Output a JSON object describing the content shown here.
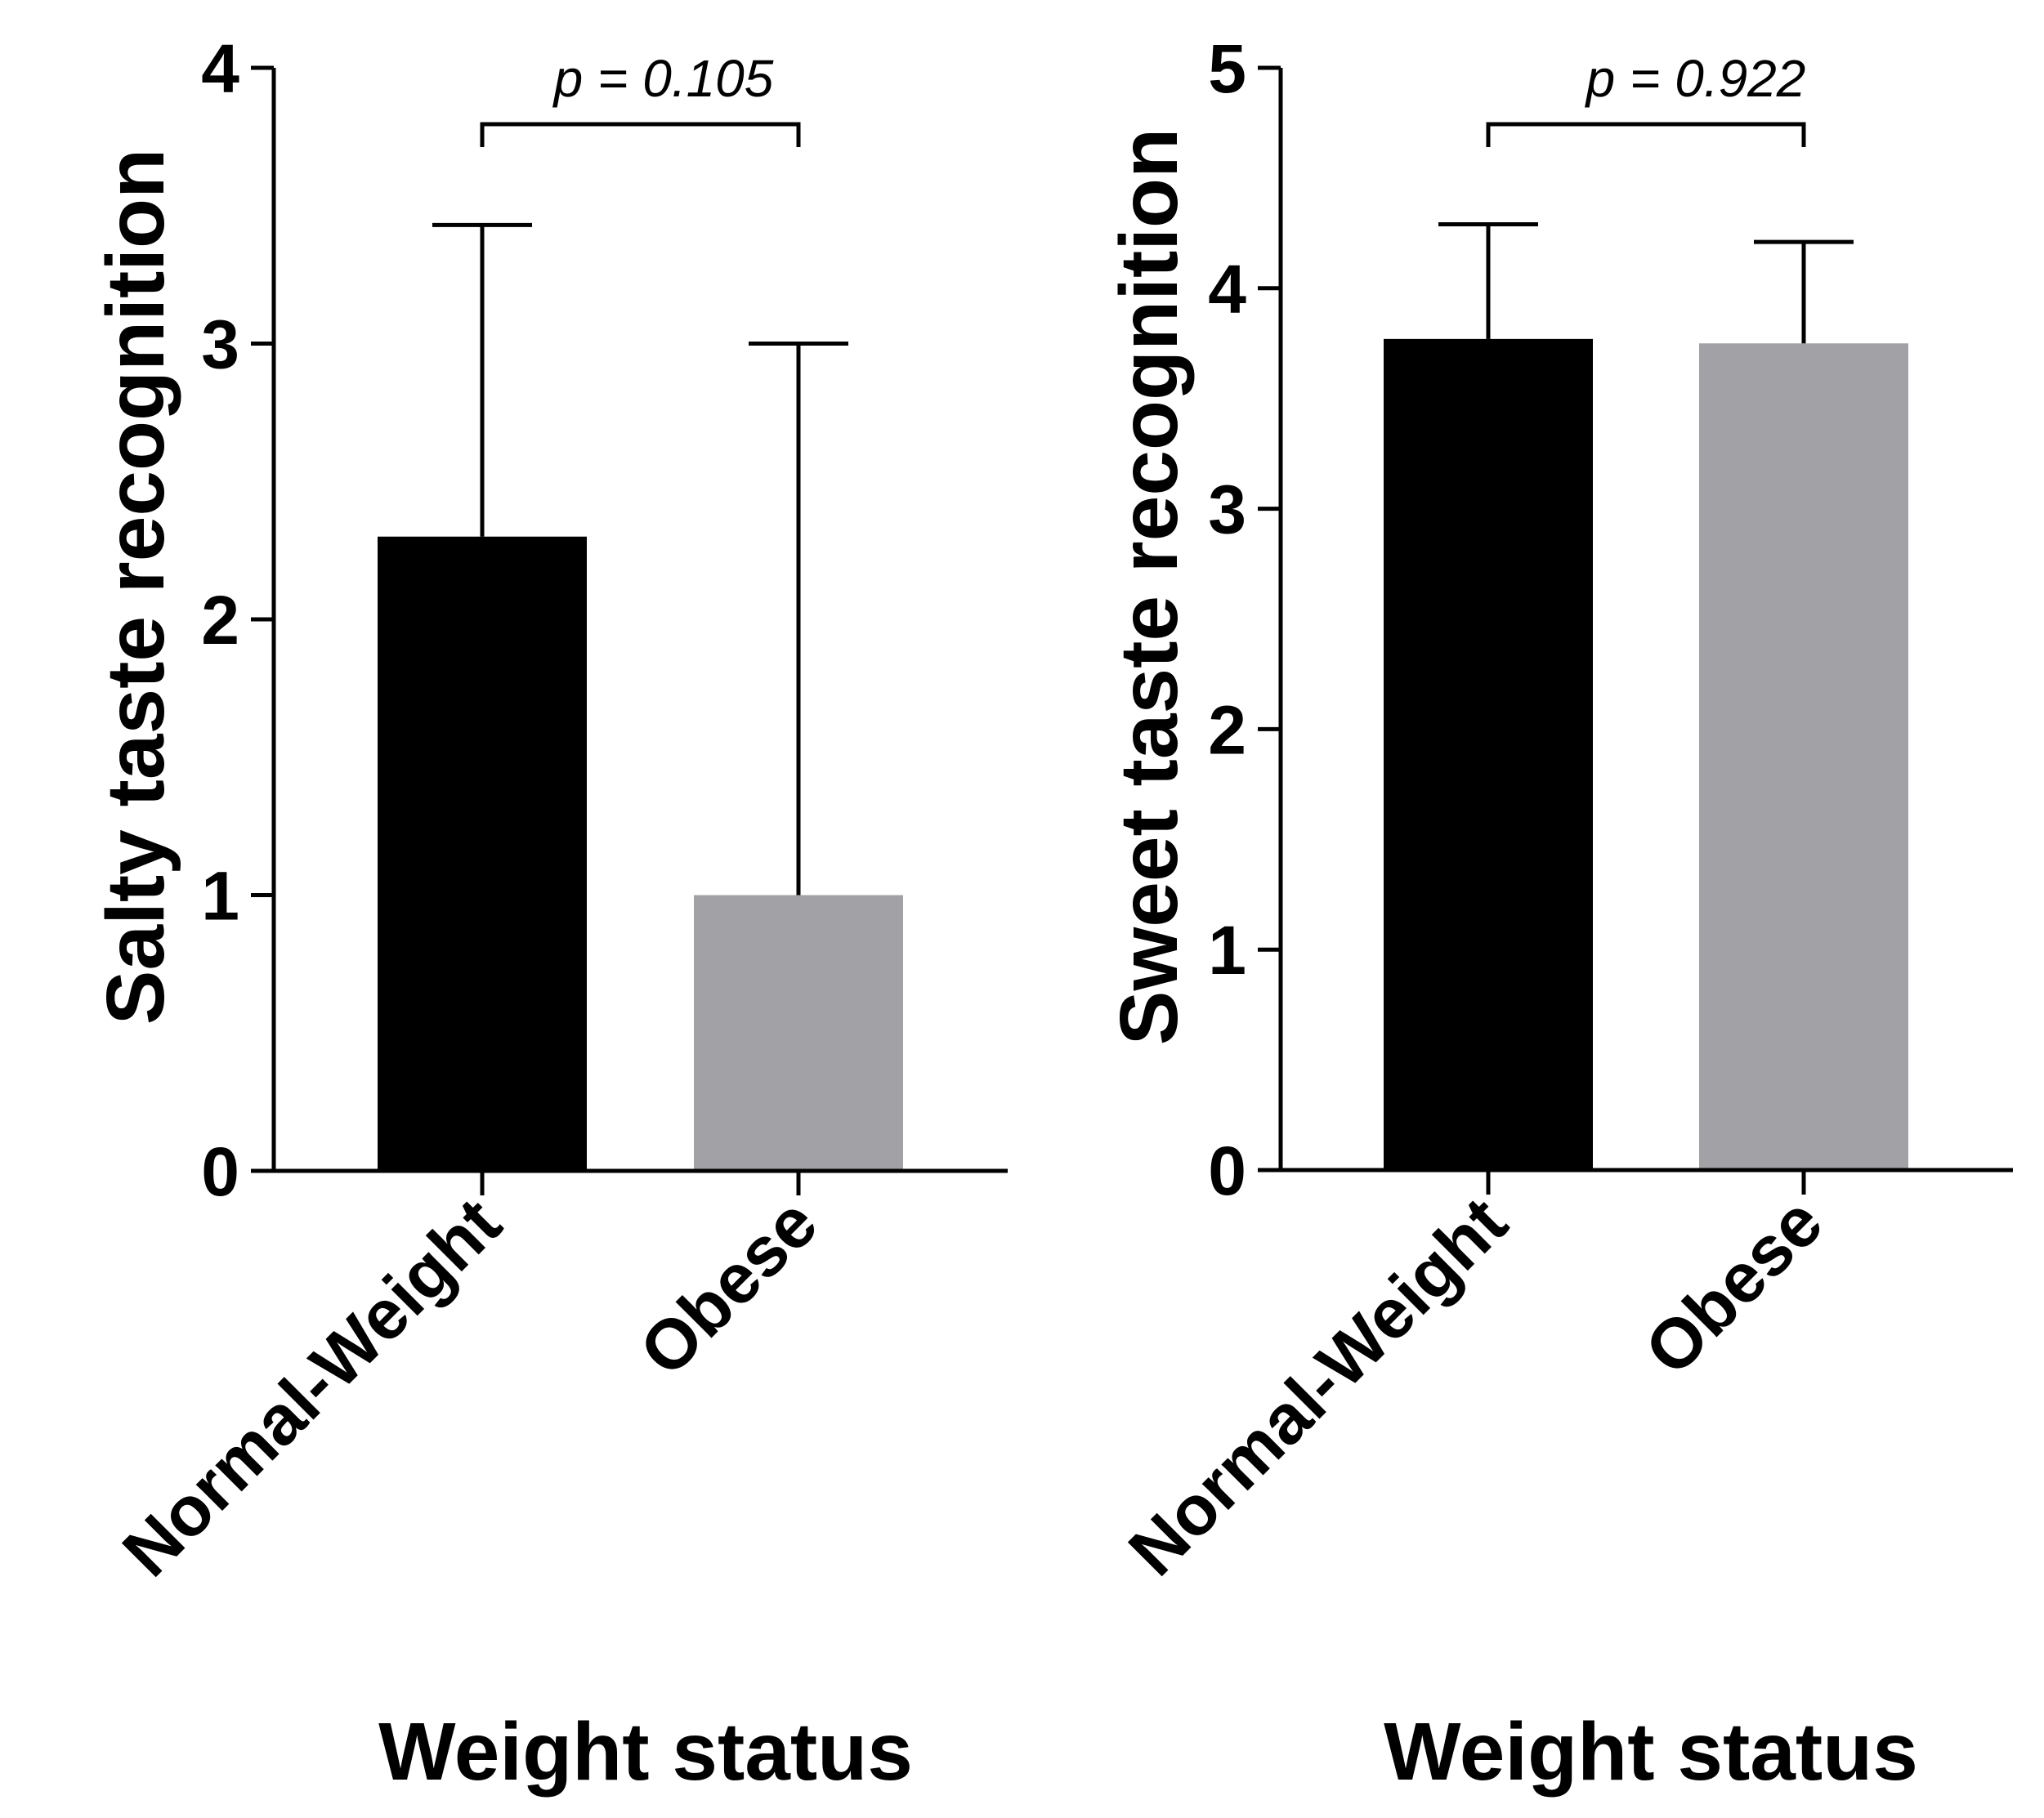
{
  "chart_data": [
    {
      "type": "bar",
      "title": "",
      "categories": [
        "Normal-Weight",
        "Obese"
      ],
      "values": [
        2.3,
        1.0
      ],
      "error_upper": [
        3.43,
        3.0
      ],
      "colors": [
        "#000000",
        "#a2a2a6"
      ],
      "ylabel": "Salty taste recognition",
      "xlabel": "Weight status",
      "ylim": [
        0,
        4
      ],
      "yticks": [
        0,
        1,
        2,
        3,
        4
      ],
      "ytick_labels": [
        "0",
        "1",
        "2",
        "3",
        "4"
      ],
      "annotation": "p = 0.105",
      "grid": false
    },
    {
      "type": "bar",
      "title": "",
      "categories": [
        "Normal-Weight",
        "Obese"
      ],
      "values": [
        3.77,
        3.75
      ],
      "error_upper": [
        4.29,
        4.21
      ],
      "colors": [
        "#000000",
        "#a2a2a6"
      ],
      "ylabel": "Sweet taste recognition",
      "xlabel": "Weight status",
      "ylim": [
        0,
        5
      ],
      "yticks": [
        0,
        1,
        2,
        3,
        4,
        5
      ],
      "ytick_labels": [
        "0",
        "1",
        "2",
        "3",
        "4",
        "5"
      ],
      "annotation": "p = 0.922",
      "grid": false
    }
  ]
}
